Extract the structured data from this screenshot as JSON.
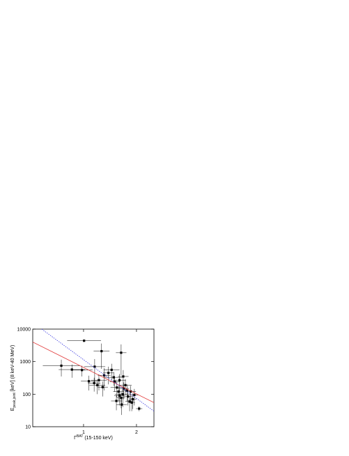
{
  "chart_data": {
    "type": "scatter",
    "xlabel": {
      "main": "Γ",
      "sup": "BAT",
      "rest": " (15-150 keV)"
    },
    "ylabel": {
      "main": "E",
      "sub": "peak,joint",
      "rest": " [keV] (8 keV-40 MeV)"
    },
    "xlim": [
      0.04,
      2.33
    ],
    "ylim": [
      10,
      10000
    ],
    "ylog": true,
    "xticks": [
      1,
      2
    ],
    "yticks": [
      10,
      100,
      1000,
      10000
    ],
    "series": [
      {
        "color": "#000000",
        "x": [
          1.01,
          1.34,
          0.58,
          0.78,
          0.97,
          1.21,
          1.57,
          1.71,
          1.1,
          1.2,
          1.26,
          1.36,
          1.29,
          1.39,
          1.47,
          1.53,
          1.59,
          1.63,
          1.66,
          1.68,
          1.71,
          1.74,
          1.76,
          1.79,
          1.82,
          1.84,
          1.87,
          1.91,
          1.93,
          1.96,
          1.89,
          2.05,
          1.62,
          1.72,
          1.68,
          1.75
        ],
        "values": [
          4400,
          2100,
          750,
          570,
          550,
          700,
          330,
          1880,
          250,
          220,
          190,
          165,
          270,
          380,
          450,
          560,
          240,
          160,
          120,
          90,
          77,
          100,
          150,
          190,
          130,
          85,
          60,
          55,
          70,
          95,
          120,
          36,
          62,
          48,
          270,
          350
        ],
        "xerr": [
          0.32,
          0.15,
          0.35,
          0.25,
          0.2,
          0.2,
          0.2,
          0.1,
          0.15,
          0.12,
          0.15,
          0.1,
          0.15,
          0.12,
          0.1,
          0.15,
          0.1,
          0.12,
          0.1,
          0.1,
          0.08,
          0.15,
          0.1,
          0.12,
          0.1,
          0.08,
          0.08,
          0.06,
          0.07,
          0.08,
          0.1,
          0.06,
          0.1,
          0.1,
          0.12,
          0.1
        ],
        "yerr": [
          400,
          1500,
          400,
          250,
          200,
          500,
          150,
          1500,
          120,
          100,
          90,
          80,
          140,
          250,
          250,
          300,
          120,
          80,
          60,
          45,
          40,
          60,
          80,
          100,
          70,
          40,
          30,
          25,
          35,
          50,
          60,
          6,
          30,
          25,
          150,
          200
        ]
      },
      {
        "color": "#e03030",
        "line": "solid",
        "x": [
          0.04,
          2.33
        ],
        "values": [
          4000,
          55
        ]
      },
      {
        "color": "#3a3ae0",
        "line": "dotted",
        "x": [
          0.21,
          2.33
        ],
        "values": [
          10000,
          30
        ]
      }
    ]
  }
}
